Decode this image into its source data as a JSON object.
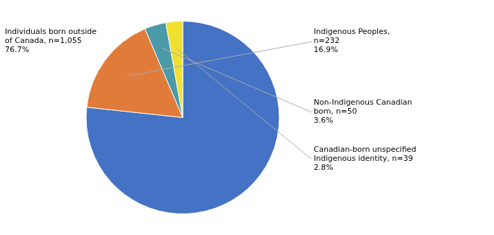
{
  "chart_data": {
    "type": "pie",
    "categories": [
      "Individuals born outside\nof Canada, n=1,055\n76.7%",
      "Indigenous Peoples,\nn=232\n16.9%",
      "Non-Indigenous Canadian\nborn, n=50\n3.6%",
      "Canadian-born unspecified\nIndigenous identity, n=39\n2.8%"
    ],
    "values": [
      76.7,
      16.9,
      3.6,
      2.8
    ],
    "colors": [
      "#4472C4",
      "#E07B39",
      "#4A9AAA",
      "#F0E030"
    ]
  }
}
